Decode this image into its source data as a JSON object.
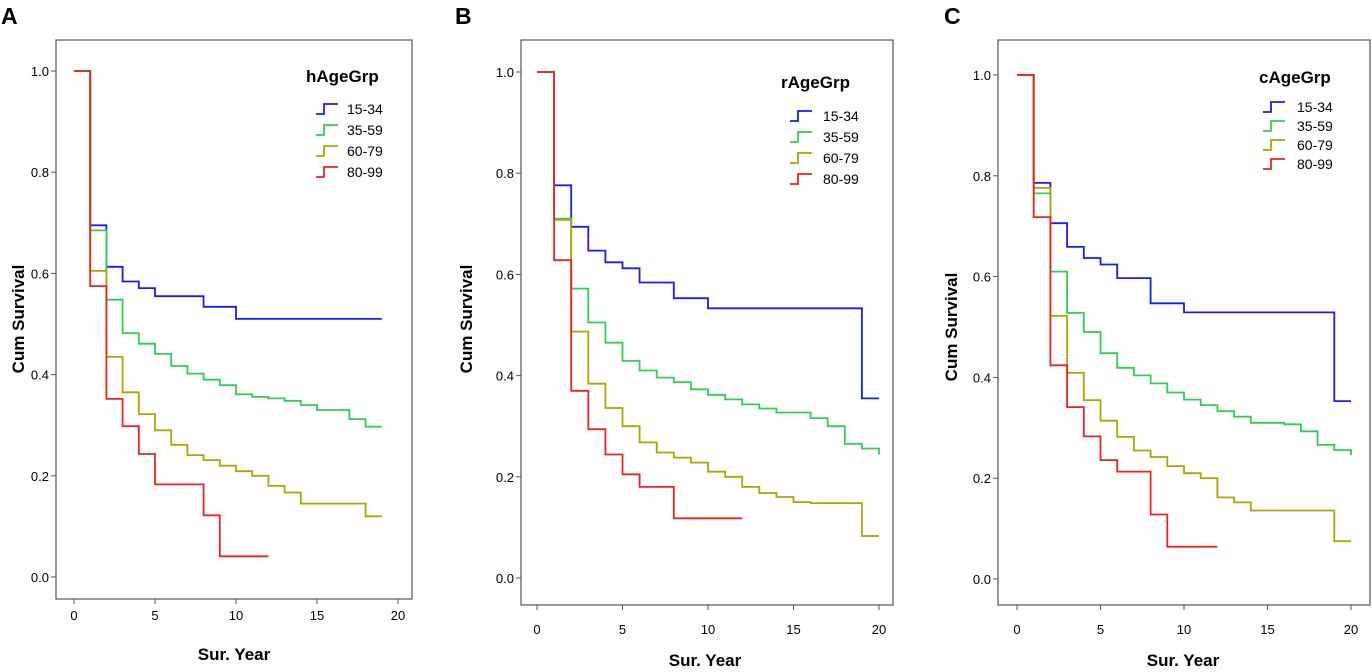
{
  "chart_data": [
    {
      "type": "line",
      "panel_label": "A",
      "xlabel": "Sur. Year",
      "ylabel": "Cum Survival",
      "xlim": [
        0,
        20
      ],
      "ylim": [
        0.0,
        1.0
      ],
      "xticks": [
        "0",
        "5",
        "10",
        "15",
        "20"
      ],
      "yticks": [
        "0.0",
        "0.2",
        "0.4",
        "0.6",
        "0.8",
        "1.0"
      ],
      "legend_title": "hAgeGrp",
      "legend_position": "top-right",
      "series": [
        {
          "name": "15-34",
          "color": "#1a1aff",
          "x": [
            0,
            1,
            2,
            3,
            4,
            5,
            8,
            10,
            19
          ],
          "y": [
            1.0,
            0.695,
            0.613,
            0.584,
            0.571,
            0.555,
            0.534,
            0.51,
            0.51
          ]
        },
        {
          "name": "35-59",
          "color": "#33cc55",
          "x": [
            0,
            1,
            2,
            3,
            4,
            5,
            6,
            7,
            8,
            9,
            10,
            11,
            12,
            13,
            14,
            15,
            17,
            18,
            19
          ],
          "y": [
            1.0,
            0.685,
            0.548,
            0.482,
            0.461,
            0.441,
            0.417,
            0.402,
            0.39,
            0.379,
            0.361,
            0.356,
            0.353,
            0.348,
            0.34,
            0.33,
            0.312,
            0.297,
            0.297
          ]
        },
        {
          "name": "60-79",
          "color": "#a8a800",
          "x": [
            0,
            1,
            2,
            3,
            4,
            5,
            6,
            7,
            8,
            9,
            10,
            11,
            12,
            13,
            14,
            18,
            19
          ],
          "y": [
            1.0,
            0.605,
            0.435,
            0.365,
            0.322,
            0.29,
            0.261,
            0.241,
            0.231,
            0.22,
            0.209,
            0.2,
            0.18,
            0.167,
            0.145,
            0.12,
            0.12
          ]
        },
        {
          "name": "80-99",
          "color": "#ee2222",
          "x": [
            0,
            1,
            2,
            3,
            4,
            5,
            8,
            9,
            12
          ],
          "y": [
            1.0,
            0.575,
            0.352,
            0.298,
            0.243,
            0.183,
            0.122,
            0.041,
            0.041
          ]
        }
      ]
    },
    {
      "type": "line",
      "panel_label": "B",
      "xlabel": "Sur. Year",
      "ylabel": "Cum Survival",
      "xlim": [
        0,
        20
      ],
      "ylim": [
        0.0,
        1.0
      ],
      "xticks": [
        "0",
        "5",
        "10",
        "15",
        "20"
      ],
      "yticks": [
        "0.0",
        "0.2",
        "0.4",
        "0.6",
        "0.8",
        "1.0"
      ],
      "legend_title": "rAgeGrp",
      "legend_position": "top-right",
      "series": [
        {
          "name": "15-34",
          "color": "#1a1aff",
          "x": [
            0,
            1,
            2,
            3,
            4,
            5,
            6,
            8,
            10,
            19,
            20
          ],
          "y": [
            1.0,
            0.776,
            0.694,
            0.647,
            0.624,
            0.612,
            0.584,
            0.553,
            0.533,
            0.355,
            0.355
          ]
        },
        {
          "name": "35-59",
          "color": "#33cc55",
          "x": [
            0,
            1,
            2,
            3,
            4,
            5,
            6,
            7,
            8,
            9,
            10,
            11,
            12,
            13,
            14,
            16,
            17,
            18,
            19,
            20
          ],
          "y": [
            1.0,
            0.71,
            0.572,
            0.505,
            0.465,
            0.429,
            0.41,
            0.396,
            0.387,
            0.373,
            0.362,
            0.353,
            0.343,
            0.335,
            0.327,
            0.316,
            0.3,
            0.265,
            0.256,
            0.244
          ]
        },
        {
          "name": "60-79",
          "color": "#a8a800",
          "x": [
            0,
            1,
            2,
            3,
            4,
            5,
            6,
            7,
            8,
            9,
            10,
            11,
            12,
            13,
            14,
            15,
            16,
            19,
            20
          ],
          "y": [
            1.0,
            0.708,
            0.487,
            0.384,
            0.336,
            0.3,
            0.268,
            0.248,
            0.238,
            0.228,
            0.21,
            0.2,
            0.18,
            0.168,
            0.16,
            0.15,
            0.148,
            0.083,
            0.083
          ]
        },
        {
          "name": "80-99",
          "color": "#ee2222",
          "x": [
            0,
            1,
            2,
            3,
            4,
            5,
            6,
            8,
            12
          ],
          "y": [
            1.0,
            0.628,
            0.37,
            0.294,
            0.244,
            0.205,
            0.18,
            0.118,
            0.118
          ]
        }
      ]
    },
    {
      "type": "line",
      "panel_label": "C",
      "xlabel": "Sur. Year",
      "ylabel": "Cum Survival",
      "xlim": [
        0,
        20
      ],
      "ylim": [
        0.0,
        1.0
      ],
      "xticks": [
        "0",
        "5",
        "10",
        "15",
        "20"
      ],
      "yticks": [
        "0.0",
        "0.2",
        "0.4",
        "0.6",
        "0.8",
        "1.0"
      ],
      "legend_title": "cAgeGrp",
      "legend_position": "top-right",
      "series": [
        {
          "name": "15-34",
          "color": "#1a1aff",
          "x": [
            0,
            1,
            2,
            3,
            4,
            5,
            6,
            8,
            10,
            19,
            20
          ],
          "y": [
            1.0,
            0.786,
            0.706,
            0.659,
            0.637,
            0.624,
            0.597,
            0.547,
            0.529,
            0.353,
            0.353
          ]
        },
        {
          "name": "35-59",
          "color": "#33cc55",
          "x": [
            0,
            1,
            2,
            3,
            4,
            5,
            6,
            7,
            8,
            9,
            10,
            11,
            12,
            13,
            14,
            16,
            17,
            18,
            19,
            20
          ],
          "y": [
            1.0,
            0.765,
            0.61,
            0.528,
            0.49,
            0.448,
            0.419,
            0.404,
            0.388,
            0.37,
            0.356,
            0.345,
            0.333,
            0.322,
            0.31,
            0.307,
            0.293,
            0.266,
            0.256,
            0.246
          ]
        },
        {
          "name": "60-79",
          "color": "#a8a800",
          "x": [
            0,
            1,
            2,
            3,
            4,
            5,
            6,
            7,
            8,
            9,
            10,
            11,
            12,
            13,
            14,
            15,
            19,
            20
          ],
          "y": [
            1.0,
            0.776,
            0.522,
            0.409,
            0.355,
            0.314,
            0.282,
            0.255,
            0.242,
            0.224,
            0.21,
            0.2,
            0.162,
            0.152,
            0.136,
            0.136,
            0.075,
            0.075
          ]
        },
        {
          "name": "80-99",
          "color": "#ee2222",
          "x": [
            0,
            1,
            2,
            3,
            4,
            5,
            6,
            8,
            9,
            12
          ],
          "y": [
            1.0,
            0.718,
            0.424,
            0.341,
            0.283,
            0.236,
            0.213,
            0.128,
            0.064,
            0.064
          ]
        }
      ]
    }
  ]
}
